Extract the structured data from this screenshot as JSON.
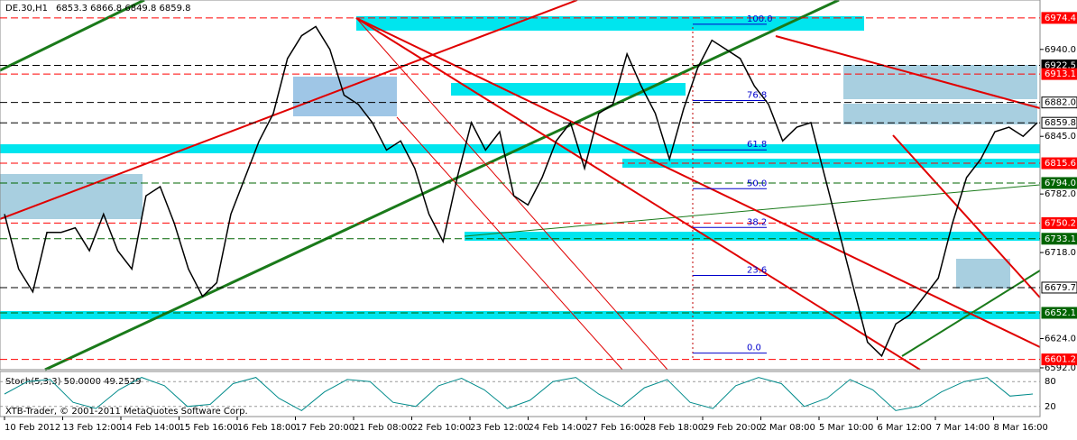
{
  "header": {
    "symbol": "DE.30,H1",
    "quote": "6853.3 6866.8 6849.8 6859.8"
  },
  "price_axis": {
    "ylim": [
      6590,
      6994
    ],
    "ticks": [
      {
        "value": 6940,
        "label": "6940.0"
      },
      {
        "value": 6845,
        "label": "6845.0"
      },
      {
        "value": 6782,
        "label": "6782.0"
      },
      {
        "value": 6718,
        "label": "6718.0"
      },
      {
        "value": 6624,
        "label": "6624.0"
      },
      {
        "value": 6592,
        "label": "6592.0"
      }
    ],
    "levels": [
      {
        "value": 6974.4,
        "label": "6974.4",
        "color": "#ff0000"
      },
      {
        "value": 6922.5,
        "label": "6922.5",
        "color": "#000000"
      },
      {
        "value": 6913.1,
        "label": "6913.1",
        "color": "#ff0000"
      },
      {
        "value": 6882.0,
        "label": "6882.0",
        "color": "#ffffff"
      },
      {
        "value": 6859.8,
        "label": "6859.8",
        "color": "#ffffff"
      },
      {
        "value": 6815.6,
        "label": "6815.6",
        "color": "#ff0000"
      },
      {
        "value": 6794.0,
        "label": "6794.0",
        "color": "#006400"
      },
      {
        "value": 6750.2,
        "label": "6750.2",
        "color": "#ff0000"
      },
      {
        "value": 6733.1,
        "label": "6733.1",
        "color": "#006400"
      },
      {
        "value": 6679.7,
        "label": "6679.7",
        "color": "#ffffff"
      },
      {
        "value": 6652.1,
        "label": "6652.1",
        "color": "#006400"
      },
      {
        "value": 6601.2,
        "label": "6601.2",
        "color": "#ff0000"
      }
    ]
  },
  "price": {
    "color": "#000000",
    "closes": [
      6760,
      6700,
      6675,
      6740,
      6740,
      6745,
      6720,
      6760,
      6720,
      6700,
      6780,
      6790,
      6750,
      6700,
      6670,
      6685,
      6760,
      6800,
      6840,
      6870,
      6930,
      6955,
      6965,
      6940,
      6890,
      6880,
      6860,
      6830,
      6840,
      6810,
      6760,
      6730,
      6800,
      6860,
      6830,
      6850,
      6780,
      6770,
      6800,
      6840,
      6860,
      6810,
      6870,
      6880,
      6935,
      6900,
      6870,
      6820,
      6875,
      6920,
      6950,
      6940,
      6930,
      6900,
      6880,
      6840,
      6855,
      6860,
      6800,
      6740,
      6680,
      6620,
      6605,
      6640,
      6650,
      6670,
      6690,
      6750,
      6800,
      6820,
      6850,
      6855,
      6845,
      6860
    ]
  },
  "fibonacci": {
    "color": "#0000cc",
    "levels": [
      {
        "value": 100,
        "label": "100.0"
      },
      {
        "value": 76.8,
        "label": "76.8"
      },
      {
        "value": 61.8,
        "label": "61.8"
      },
      {
        "value": 50,
        "label": "50.0"
      },
      {
        "value": 38.2,
        "label": "38.2"
      },
      {
        "value": 23.6,
        "label": "23.6"
      },
      {
        "value": 0,
        "label": "0.0"
      }
    ]
  },
  "stochastic": {
    "title": "Stoch(5,3,3) 50.0000 49.2529",
    "ylim": [
      0,
      100
    ],
    "ticks": [
      80,
      20
    ],
    "color": "#008b8b",
    "values": [
      50,
      80,
      85,
      30,
      15,
      60,
      90,
      70,
      20,
      25,
      75,
      90,
      40,
      10,
      55,
      85,
      80,
      30,
      20,
      70,
      88,
      60,
      15,
      35,
      80,
      90,
      50,
      20,
      65,
      85,
      30,
      15,
      70,
      90,
      75,
      20,
      40,
      85,
      60,
      10,
      20,
      55,
      80,
      90,
      45,
      50
    ]
  },
  "copyright": "XTB-Trader, © 2001-2011 MetaQuotes Software Corp.",
  "time_axis": [
    "10 Feb 2012",
    "13 Feb 12:00",
    "14 Feb 14:00",
    "15 Feb 16:00",
    "16 Feb 18:00",
    "17 Feb 20:00",
    "21 Feb 08:00",
    "22 Feb 10:00",
    "23 Feb 12:00",
    "24 Feb 14:00",
    "27 Feb 16:00",
    "28 Feb 18:00",
    "29 Feb 20:00",
    "2 Mar 08:00",
    "5 Mar 10:00",
    "6 Mar 12:00",
    "7 Mar 14:00",
    "8 Mar 16:00"
  ]
}
